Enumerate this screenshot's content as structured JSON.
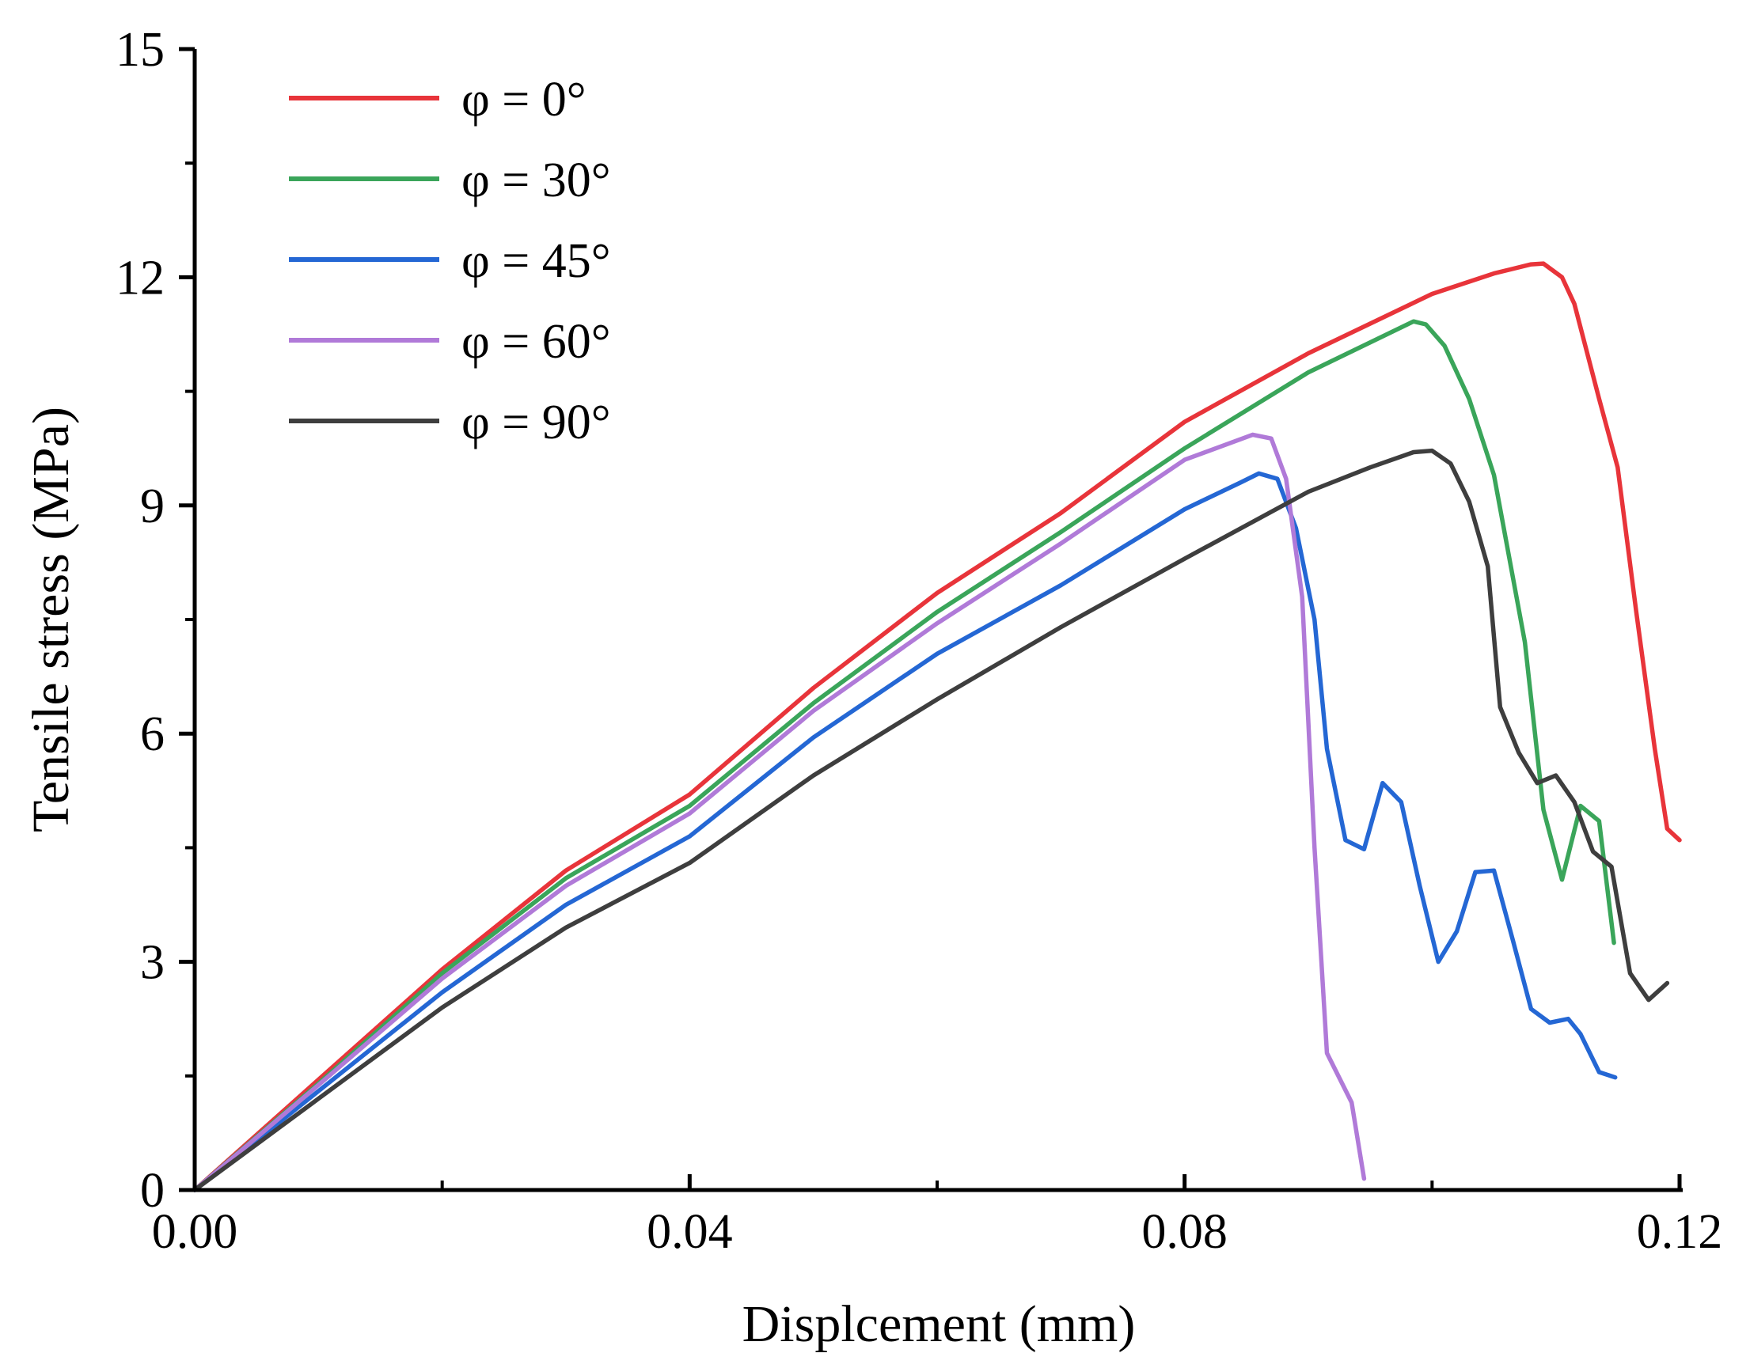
{
  "chart_data": {
    "type": "line",
    "title": "",
    "xlabel": "Displcement (mm)",
    "ylabel": "Tensile stress (MPa)",
    "xlim": [
      0,
      0.12
    ],
    "ylim": [
      0,
      15
    ],
    "x_ticks": [
      0.0,
      0.04,
      0.08,
      0.12
    ],
    "x_tick_labels": [
      "0.00",
      "0.04",
      "0.08",
      "0.12"
    ],
    "x_minor_ticks": [
      0.02,
      0.06,
      0.1
    ],
    "y_ticks": [
      0,
      3,
      6,
      9,
      12,
      15
    ],
    "y_tick_labels": [
      "0",
      "3",
      "6",
      "9",
      "12",
      "15"
    ],
    "y_minor_ticks": [
      1.5,
      4.5,
      7.5,
      10.5,
      13.5
    ],
    "grid": false,
    "legend_position": "top-left",
    "series": [
      {
        "name": "φ = 0°",
        "color": "#e8343a",
        "x": [
          0,
          0.01,
          0.02,
          0.03,
          0.04,
          0.05,
          0.06,
          0.07,
          0.08,
          0.09,
          0.1,
          0.105,
          0.108,
          0.109,
          0.1105,
          0.1115,
          0.1135,
          0.115,
          0.1165,
          0.118,
          0.119,
          0.12
        ],
        "values": [
          0,
          1.45,
          2.9,
          4.2,
          5.2,
          6.6,
          7.85,
          8.9,
          10.1,
          11.0,
          11.78,
          12.05,
          12.17,
          12.18,
          12.0,
          11.65,
          10.4,
          9.5,
          7.6,
          5.8,
          4.75,
          4.6
        ]
      },
      {
        "name": "φ = 30°",
        "color": "#3aa55a",
        "x": [
          0,
          0.01,
          0.02,
          0.03,
          0.04,
          0.05,
          0.06,
          0.07,
          0.08,
          0.09,
          0.0985,
          0.0995,
          0.101,
          0.103,
          0.105,
          0.1075,
          0.109,
          0.1105,
          0.112,
          0.1135,
          0.1147
        ],
        "values": [
          0,
          1.4,
          2.85,
          4.1,
          5.05,
          6.4,
          7.6,
          8.65,
          9.75,
          10.75,
          11.42,
          11.38,
          11.1,
          10.4,
          9.4,
          7.2,
          5.0,
          4.08,
          5.05,
          4.85,
          3.25
        ]
      },
      {
        "name": "φ = 45°",
        "color": "#2467d4",
        "x": [
          0,
          0.01,
          0.02,
          0.03,
          0.04,
          0.05,
          0.06,
          0.07,
          0.08,
          0.0845,
          0.086,
          0.0875,
          0.089,
          0.0905,
          0.0915,
          0.093,
          0.0945,
          0.096,
          0.0975,
          0.099,
          0.1005,
          0.102,
          0.1035,
          0.105,
          0.1065,
          0.108,
          0.1095,
          0.111,
          0.112,
          0.1135,
          0.1148
        ],
        "values": [
          0,
          1.3,
          2.6,
          3.75,
          4.65,
          5.95,
          7.05,
          7.95,
          8.95,
          9.3,
          9.42,
          9.35,
          8.7,
          7.5,
          5.8,
          4.6,
          4.48,
          5.35,
          5.1,
          4.0,
          3.0,
          3.4,
          4.18,
          4.2,
          3.3,
          2.38,
          2.2,
          2.25,
          2.05,
          1.55,
          1.48
        ]
      },
      {
        "name": "φ = 60°",
        "color": "#b07ad8",
        "x": [
          0,
          0.01,
          0.02,
          0.03,
          0.04,
          0.05,
          0.06,
          0.07,
          0.08,
          0.0855,
          0.087,
          0.0882,
          0.0895,
          0.0905,
          0.0915,
          0.0935,
          0.0945
        ],
        "values": [
          0,
          1.38,
          2.78,
          4.0,
          4.95,
          6.3,
          7.45,
          8.5,
          9.6,
          9.93,
          9.88,
          9.35,
          7.8,
          4.5,
          1.8,
          1.15,
          0.15
        ]
      },
      {
        "name": "φ = 90°",
        "color": "#3e3e3e",
        "x": [
          0,
          0.01,
          0.02,
          0.03,
          0.04,
          0.05,
          0.06,
          0.07,
          0.08,
          0.09,
          0.095,
          0.0985,
          0.1,
          0.1015,
          0.103,
          0.1045,
          0.1055,
          0.107,
          0.1085,
          0.11,
          0.1115,
          0.113,
          0.1145,
          0.116,
          0.1175,
          0.119
        ],
        "values": [
          0,
          1.2,
          2.4,
          3.45,
          4.3,
          5.45,
          6.45,
          7.4,
          8.3,
          9.18,
          9.5,
          9.7,
          9.72,
          9.55,
          9.05,
          8.2,
          6.35,
          5.75,
          5.35,
          5.45,
          5.1,
          4.45,
          4.25,
          2.85,
          2.5,
          2.72
        ]
      }
    ]
  }
}
